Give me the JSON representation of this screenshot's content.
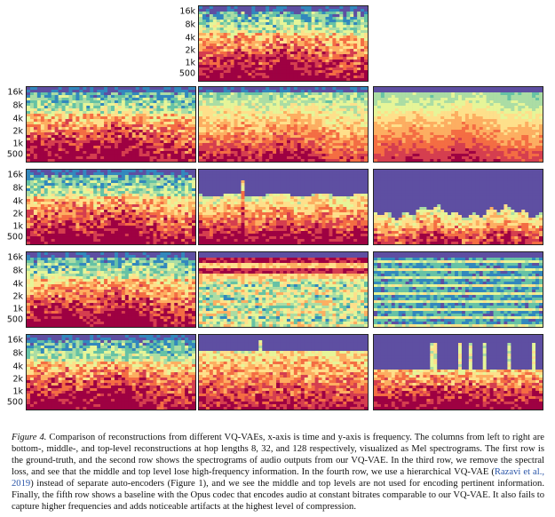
{
  "y_axis_labels": [
    "16k",
    "8k",
    "4k",
    "2k",
    "1k",
    "500"
  ],
  "rows": [
    {
      "row_id": "ground-truth",
      "panels": [
        {
          "style": "full"
        }
      ]
    },
    {
      "row_id": "vqvae",
      "panels": [
        {
          "style": "full"
        },
        {
          "style": "full-soft"
        },
        {
          "style": "smooth"
        }
      ]
    },
    {
      "row_id": "no-spectral-loss",
      "panels": [
        {
          "style": "full"
        },
        {
          "style": "lowpass-mid"
        },
        {
          "style": "lowpass-low"
        }
      ]
    },
    {
      "row_id": "hierarchical",
      "panels": [
        {
          "style": "full"
        },
        {
          "style": "noise-bands"
        },
        {
          "style": "noise-lines"
        }
      ]
    },
    {
      "row_id": "opus",
      "panels": [
        {
          "style": "full"
        },
        {
          "style": "opus-mid"
        },
        {
          "style": "opus-low"
        }
      ]
    }
  ],
  "colors": {
    "top_background": "#5e4fa2",
    "spectral_scale": [
      "#5e4fa2",
      "#3288bd",
      "#66c2a5",
      "#abdda4",
      "#e6f598",
      "#fee08b",
      "#fdae61",
      "#f46d43",
      "#d53e4f",
      "#9e0142"
    ]
  },
  "caption": {
    "label": "Figure 4.",
    "text_1": "Comparison of reconstructions from different VQ-VAEs, x-axis is time and y-axis is frequency. The columns from left to right are bottom-, middle-, and top-level reconstructions at hop lengths 8, 32, and 128 respectively, visualized as Mel spectrograms. The first row is the ground-truth, and the second row shows the spectrograms of audio outputs from our VQ-VAE. In the third row, we remove the spectral loss, and see that the middle and top level lose high-frequency information. In the fourth row, we use a hierarchical VQ-VAE (",
    "citation": "Razavi et al., 2019",
    "text_2": ") instead of separate auto-encoders (Figure 1), and we see the middle and top levels are not used for encoding pertinent information. Finally, the fifth row shows a baseline with the Opus codec that encodes audio at constant bitrates comparable to our VQ-VAE. It also fails to capture higher frequencies and adds noticeable artifacts at the highest level of compression."
  }
}
